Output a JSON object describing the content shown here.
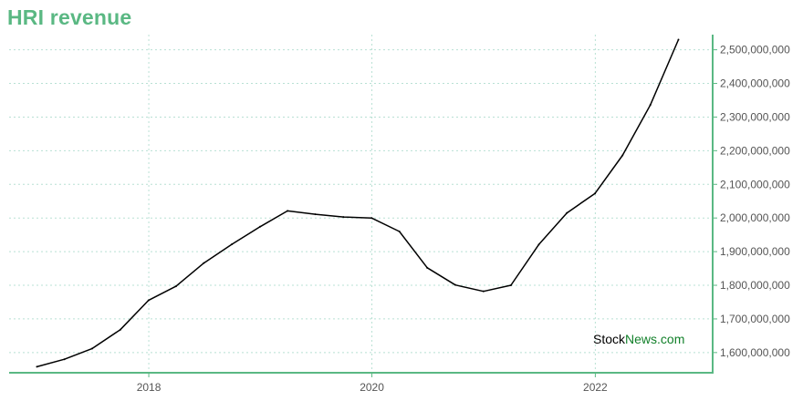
{
  "title": "HRI revenue",
  "watermark": {
    "part1": "Stock",
    "part2": "News.com"
  },
  "colors": {
    "title": "#5ab883",
    "axis": "#5ab883",
    "grid": "#b8e0d4",
    "line": "#000000"
  },
  "chart_data": {
    "type": "line",
    "title": "HRI revenue",
    "xlabel": "",
    "ylabel": "",
    "grid": true,
    "y_axis_position": "right",
    "xlim": [
      "2016-10-01",
      "2023-01-20"
    ],
    "ylim": [
      1540000000,
      2545000000
    ],
    "x_ticks": [
      {
        "label": "2018",
        "date": "2018-01-01"
      },
      {
        "label": "2020",
        "date": "2020-01-01"
      },
      {
        "label": "2022",
        "date": "2022-01-01"
      }
    ],
    "y_ticks": [
      {
        "label": "1,600,000,000",
        "value": 1600000000
      },
      {
        "label": "1,700,000,000",
        "value": 1700000000
      },
      {
        "label": "1,800,000,000",
        "value": 1800000000
      },
      {
        "label": "1,900,000,000",
        "value": 1900000000
      },
      {
        "label": "2,000,000,000",
        "value": 2000000000
      },
      {
        "label": "2,100,000,000",
        "value": 2100000000
      },
      {
        "label": "2,200,000,000",
        "value": 2200000000
      },
      {
        "label": "2,300,000,000",
        "value": 2300000000
      },
      {
        "label": "2,400,000,000",
        "value": 2400000000
      },
      {
        "label": "2,500,000,000",
        "value": 2500000000
      }
    ],
    "series": [
      {
        "points": [
          {
            "x": "2016-12-31",
            "y": 1558000000
          },
          {
            "x": "2017-03-31",
            "y": 1580000000
          },
          {
            "x": "2017-06-30",
            "y": 1612000000
          },
          {
            "x": "2017-09-30",
            "y": 1668000000
          },
          {
            "x": "2017-12-31",
            "y": 1755000000
          },
          {
            "x": "2018-03-31",
            "y": 1797000000
          },
          {
            "x": "2018-06-30",
            "y": 1866000000
          },
          {
            "x": "2018-09-30",
            "y": 1922000000
          },
          {
            "x": "2018-12-31",
            "y": 1974000000
          },
          {
            "x": "2019-03-31",
            "y": 2021000000
          },
          {
            "x": "2019-06-30",
            "y": 2011000000
          },
          {
            "x": "2019-09-30",
            "y": 2003000000
          },
          {
            "x": "2019-12-31",
            "y": 2000000000
          },
          {
            "x": "2020-03-31",
            "y": 1960000000
          },
          {
            "x": "2020-06-30",
            "y": 1852000000
          },
          {
            "x": "2020-09-30",
            "y": 1801000000
          },
          {
            "x": "2020-12-31",
            "y": 1782000000
          },
          {
            "x": "2021-03-31",
            "y": 1800000000
          },
          {
            "x": "2021-06-30",
            "y": 1921000000
          },
          {
            "x": "2021-09-30",
            "y": 2015000000
          },
          {
            "x": "2021-12-31",
            "y": 2073000000
          },
          {
            "x": "2022-03-31",
            "y": 2186000000
          },
          {
            "x": "2022-06-30",
            "y": 2336000000
          },
          {
            "x": "2022-09-30",
            "y": 2530000000
          }
        ]
      }
    ]
  }
}
